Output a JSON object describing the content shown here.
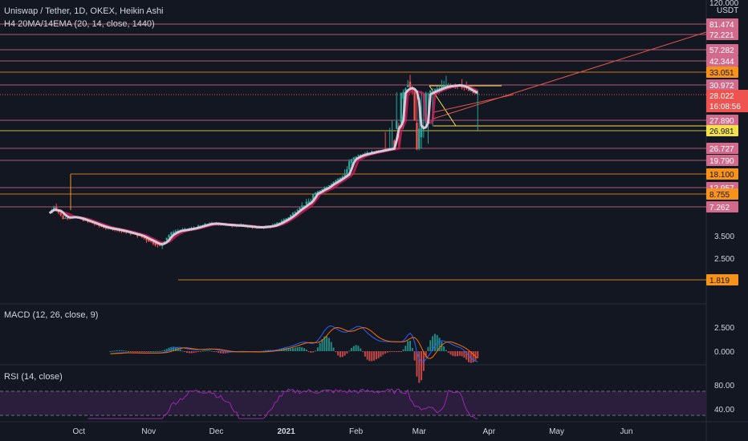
{
  "header": {
    "title": "Uniswap / Tether, 1D, OKEX, Heikin Ashi",
    "indicator": "H4 20MA/14EMA (20, 14, close, 1440)",
    "top_price": "120.000",
    "unit": "USDT"
  },
  "macd": {
    "label": "MACD (12, 26, close, 9)",
    "ticks": [
      "2.500",
      "0.000"
    ]
  },
  "rsi": {
    "label": "RSI (14, close)",
    "ticks": [
      "80.00",
      "40.00"
    ]
  },
  "colors": {
    "background": "#131722",
    "up": "#26a69a",
    "down": "#ef5350",
    "ma": "#d6c8d9",
    "ema": "#e91e63",
    "level_pink": "#d26a8c",
    "level_orange": "#f7931a",
    "level_yellow": "#f4e04d",
    "trend": "#e0554a",
    "macd_line": "#2962ff",
    "signal_line": "#ff6d00",
    "rsi_line": "#9c27b0",
    "rsi_band": "#2a1e3c"
  },
  "chart_data": {
    "type": "candlestick",
    "title": "Uniswap / Tether, 1D, OKEX, Heikin Ashi",
    "scale": "log",
    "x_ticks": [
      "Oct",
      "Nov",
      "Dec",
      "2021",
      "Feb",
      "Mar",
      "Apr",
      "May",
      "Jun"
    ],
    "y_ticks": [
      "3.500",
      "2.500"
    ],
    "current_price": "28.022",
    "countdown": "16:08:56",
    "levels": [
      {
        "value": "81.474",
        "color": "pink"
      },
      {
        "value": "72.221",
        "color": "pink"
      },
      {
        "value": "57.282",
        "color": "pink"
      },
      {
        "value": "42.344",
        "color": "pink"
      },
      {
        "value": "33.051",
        "color": "orange"
      },
      {
        "value": "30.972",
        "color": "pink"
      },
      {
        "value": "27.890",
        "color": "pink"
      },
      {
        "value": "26.981",
        "color": "yellow"
      },
      {
        "value": "26.727",
        "color": "pink"
      },
      {
        "value": "19.790",
        "color": "pink"
      },
      {
        "value": "18.100",
        "color": "orange"
      },
      {
        "value": "12.957",
        "color": "pink"
      },
      {
        "value": "8.755",
        "color": "orange"
      },
      {
        "value": "7.262",
        "color": "pink"
      },
      {
        "value": "1.819",
        "color": "orange"
      }
    ],
    "price_path": [
      [
        "2020-09-18",
        6.2
      ],
      [
        "2020-09-20",
        7.3
      ],
      [
        "2020-09-24",
        5.4
      ],
      [
        "2020-09-28",
        5.7
      ],
      [
        "2020-10-05",
        5.0
      ],
      [
        "2020-10-12",
        4.3
      ],
      [
        "2020-10-19",
        4.0
      ],
      [
        "2020-10-26",
        3.6
      ],
      [
        "2020-11-02",
        3.2
      ],
      [
        "2020-11-06",
        3.0
      ],
      [
        "2020-11-12",
        3.9
      ],
      [
        "2020-11-20",
        4.2
      ],
      [
        "2020-11-28",
        4.8
      ],
      [
        "2020-12-05",
        4.6
      ],
      [
        "2020-12-12",
        4.5
      ],
      [
        "2020-12-19",
        4.3
      ],
      [
        "2020-12-26",
        4.5
      ],
      [
        "2021-01-02",
        5.6
      ],
      [
        "2021-01-07",
        7.2
      ],
      [
        "2021-01-12",
        8.0
      ],
      [
        "2021-01-18",
        13.0
      ],
      [
        "2021-01-25",
        16.5
      ],
      [
        "2021-02-01",
        22.0
      ],
      [
        "2021-02-07",
        24.0
      ],
      [
        "2021-02-14",
        26.0
      ],
      [
        "2021-02-21",
        28.0
      ],
      [
        "2021-02-24",
        31.5
      ],
      [
        "2021-02-28",
        26.5
      ],
      [
        "2021-03-05",
        28.5
      ],
      [
        "2021-03-12",
        30.5
      ],
      [
        "2021-03-19",
        31.0
      ],
      [
        "2021-03-24",
        28.8
      ],
      [
        "2021-03-27",
        28.0
      ]
    ]
  }
}
